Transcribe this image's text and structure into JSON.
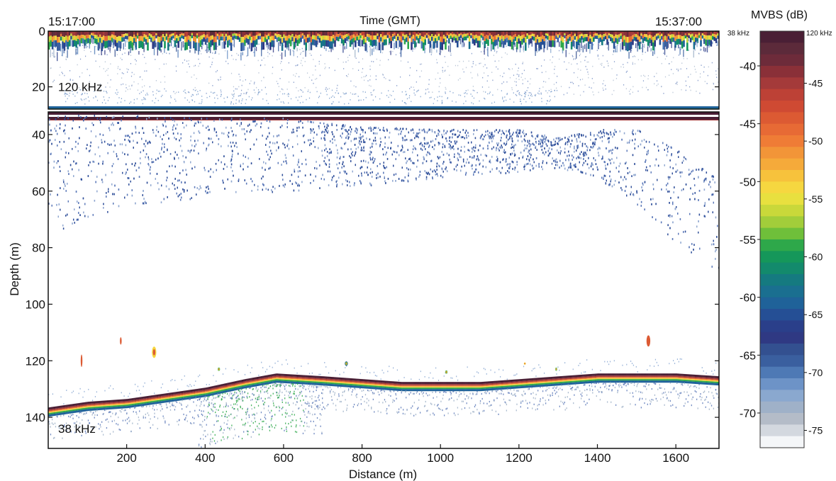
{
  "chart_data": {
    "type": "heatmap",
    "time_axis": {
      "label": "Time (GMT)",
      "start": "15:17:00",
      "end": "15:37:00"
    },
    "xlabel": "Distance (m)",
    "ylabel": "Depth (m)",
    "xlim": [
      0,
      1710
    ],
    "x_ticks": [
      200,
      400,
      600,
      800,
      1000,
      1200,
      1400,
      1600
    ],
    "panels": [
      {
        "name": "120 kHz",
        "ylim": [
          0,
          28
        ],
        "y_ticks": [
          0,
          20
        ],
        "features": {
          "surface_layer_depth": [
            0,
            4
          ],
          "bottom_line_depth": 27.5
        }
      },
      {
        "name": "38 kHz",
        "ylim": [
          32,
          151
        ],
        "y_ticks": [
          40,
          60,
          80,
          100,
          120,
          140
        ],
        "scattering_layer": {
          "x": [
            0,
            200,
            400,
            600,
            800,
            1000,
            1200,
            1300,
            1400,
            1500,
            1600,
            1700
          ],
          "top": [
            33,
            33,
            34,
            34,
            37,
            38,
            38,
            41,
            38,
            38,
            45,
            55
          ],
          "bottom": [
            75,
            65,
            62,
            60,
            58,
            55,
            53,
            52,
            55,
            65,
            78,
            88
          ]
        },
        "seabed": {
          "x": [
            0,
            100,
            200,
            300,
            400,
            500,
            580,
            700,
            800,
            900,
            1000,
            1100,
            1200,
            1300,
            1400,
            1500,
            1600,
            1710
          ],
          "depth": [
            137,
            135,
            134,
            132,
            130,
            127,
            125,
            126,
            127,
            128,
            128,
            128,
            127,
            126,
            125,
            125,
            125,
            126
          ]
        },
        "fish_schools": [
          {
            "x": 85,
            "depth": 120,
            "radius_x": 10,
            "radius_y": 10,
            "peak_dB": -45
          },
          {
            "x": 185,
            "depth": 113,
            "radius_x": 10,
            "radius_y": 6,
            "peak_dB": -45
          },
          {
            "x": 270,
            "depth": 117,
            "radius_x": 14,
            "radius_y": 5,
            "peak_dB": -55
          },
          {
            "x": 1530,
            "depth": 113,
            "radius_x": 22,
            "radius_y": 9,
            "peak_dB": -45
          },
          {
            "x": 435,
            "depth": 123,
            "radius_x": 5,
            "radius_y": 1,
            "peak_dB": -60
          },
          {
            "x": 760,
            "depth": 121,
            "radius_x": 5,
            "radius_y": 1,
            "peak_dB": -65
          },
          {
            "x": 1015,
            "depth": 124,
            "radius_x": 5,
            "radius_y": 1,
            "peak_dB": -60
          },
          {
            "x": 1215,
            "depth": 121,
            "radius_x": 6,
            "radius_y": 1,
            "peak_dB": -55
          },
          {
            "x": 1295,
            "depth": 123,
            "radius_x": 4,
            "radius_y": 1,
            "peak_dB": -60
          }
        ]
      }
    ],
    "colorbar": {
      "title": "MVBS (dB)",
      "label_38": "38 kHz",
      "label_120": "120 kHz",
      "ticks_38": [
        -40,
        -45,
        -50,
        -55,
        -60,
        -65,
        -70
      ],
      "ticks_120": [
        -45,
        -50,
        -55,
        -60,
        -65,
        -70,
        -75
      ],
      "colors": [
        "#4a1f35",
        "#5c2a3a",
        "#6d2b3a",
        "#8a3038",
        "#a43a3a",
        "#bd4136",
        "#cf4a33",
        "#dc5a33",
        "#e76a35",
        "#ef7c36",
        "#f29538",
        "#f5aa3a",
        "#f7c23c",
        "#f6d740",
        "#e8e03f",
        "#c9d83a",
        "#a2cd3a",
        "#6fbf3a",
        "#2ea84a",
        "#15975a",
        "#138a6c",
        "#157a80",
        "#1a6f90",
        "#1f6299",
        "#254f95",
        "#2a3f8a",
        "#2f3983",
        "#335090",
        "#3a5f9f",
        "#4e79b5",
        "#6d93c7",
        "#8aa8cf",
        "#9fb1c8",
        "#b4bcc8",
        "#d3d8df",
        "#f4f6f8"
      ]
    }
  }
}
